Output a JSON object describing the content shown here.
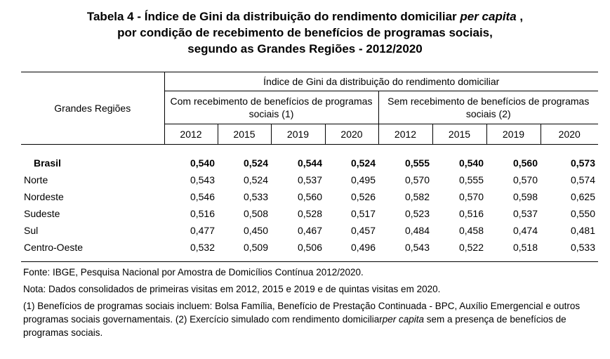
{
  "title": {
    "line1_prefix": "Tabela 4 - Índice de Gini da distribuição do rendimento domiciliar ",
    "line1_italic": "per capita",
    "line1_suffix": " ,",
    "line2": "por condição de recebimento de benefícios de programas sociais,",
    "line3": "segundo as Grandes Regiões - 2012/2020"
  },
  "table": {
    "region_header": "Grandes Regiões",
    "gini_header": "Índice de Gini da distribuição do rendimento domiciliar",
    "group_with": "Com recebimento de benefícios de programas sociais (1)",
    "group_without": "Sem recebimento de benefícios de programas sociais (2)",
    "years": [
      "2012",
      "2015",
      "2019",
      "2020",
      "2012",
      "2015",
      "2019",
      "2020"
    ],
    "rows": [
      {
        "name": "Brasil",
        "values": [
          "0,540",
          "0,524",
          "0,544",
          "0,524",
          "0,555",
          "0,540",
          "0,560",
          "0,573"
        ]
      },
      {
        "name": "Norte",
        "values": [
          "0,543",
          "0,524",
          "0,537",
          "0,495",
          "0,570",
          "0,555",
          "0,570",
          "0,574"
        ]
      },
      {
        "name": "Nordeste",
        "values": [
          "0,546",
          "0,533",
          "0,560",
          "0,526",
          "0,582",
          "0,570",
          "0,598",
          "0,625"
        ]
      },
      {
        "name": "Sudeste",
        "values": [
          "0,516",
          "0,508",
          "0,528",
          "0,517",
          "0,523",
          "0,516",
          "0,537",
          "0,550"
        ]
      },
      {
        "name": "Sul",
        "values": [
          "0,477",
          "0,450",
          "0,467",
          "0,457",
          "0,484",
          "0,458",
          "0,474",
          "0,481"
        ]
      },
      {
        "name": "Centro-Oeste",
        "values": [
          "0,532",
          "0,509",
          "0,506",
          "0,496",
          "0,543",
          "0,522",
          "0,518",
          "0,533"
        ]
      }
    ]
  },
  "notes": {
    "source": "Fonte: IBGE, Pesquisa Nacional por Amostra de Domicílios Contínua 2012/2020.",
    "note": "Nota: Dados consolidados de primeiras visitas em 2012, 2015 e 2019 e de quintas visitas em 2020.",
    "footnote_part1": "(1) Benefícios de programas sociais incluem: Bolsa Família, Benefício de Prestação Continuada - BPC, Auxílio Emergencial e outros programas sociais governamentais. (2) Exercício simulado com rendimento domiciliar",
    "footnote_italic": "per capita",
    "footnote_part2": " sem a presença de benefícios de programas sociais."
  }
}
